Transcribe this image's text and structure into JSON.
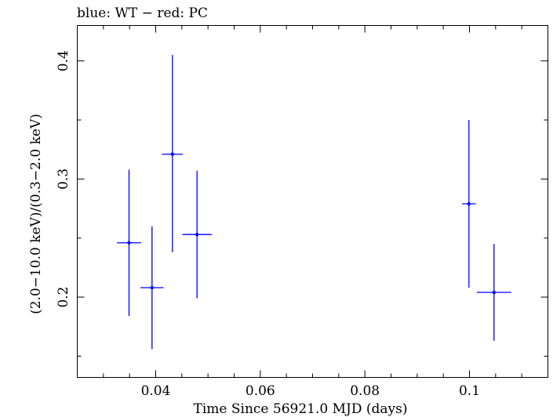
{
  "chart_data": {
    "type": "scatter",
    "title": "blue: WT − red: PC",
    "xlabel": "Time Since 56921.0 MJD (days)",
    "ylabel": "(2.0−10.0 keV)/(0.3−2.0 keV)",
    "xlim": [
      0.025,
      0.115
    ],
    "ylim": [
      0.132,
      0.43
    ],
    "x_ticks_major": [
      0.04,
      0.06,
      0.08,
      0.1
    ],
    "x_tick_labels": [
      "0.04",
      "0.06",
      "0.08",
      "0.1"
    ],
    "x_ticks_minor": [
      0.03,
      0.035,
      0.045,
      0.05,
      0.055,
      0.065,
      0.07,
      0.075,
      0.085,
      0.09,
      0.095,
      0.105,
      0.11
    ],
    "y_ticks_major": [
      0.2,
      0.3,
      0.4
    ],
    "y_tick_labels": [
      "0.2",
      "0.3",
      "0.4"
    ],
    "y_ticks_minor": [
      0.15,
      0.25,
      0.35
    ],
    "grid": false,
    "legend": "none",
    "series": [
      {
        "color": "#0000ff",
        "points": [
          {
            "x": 0.0349,
            "y": 0.246,
            "xerr": [
              0.0023,
              0.0023
            ],
            "yerr": [
              0.062,
              0.062
            ]
          },
          {
            "x": 0.0393,
            "y": 0.208,
            "xerr": [
              0.0022,
              0.0022
            ],
            "yerr": [
              0.052,
              0.052
            ]
          },
          {
            "x": 0.0432,
            "y": 0.321,
            "xerr": [
              0.002,
              0.002
            ],
            "yerr": [
              0.083,
              0.084
            ]
          },
          {
            "x": 0.0479,
            "y": 0.253,
            "xerr": [
              0.0028,
              0.0028
            ],
            "yerr": [
              0.054,
              0.054
            ]
          },
          {
            "x": 0.0999,
            "y": 0.279,
            "xerr": [
              0.0013,
              0.0013
            ],
            "yerr": [
              0.071,
              0.071
            ]
          },
          {
            "x": 0.1047,
            "y": 0.204,
            "xerr": [
              0.0033,
              0.0033
            ],
            "yerr": [
              0.041,
              0.041
            ]
          }
        ]
      }
    ]
  }
}
